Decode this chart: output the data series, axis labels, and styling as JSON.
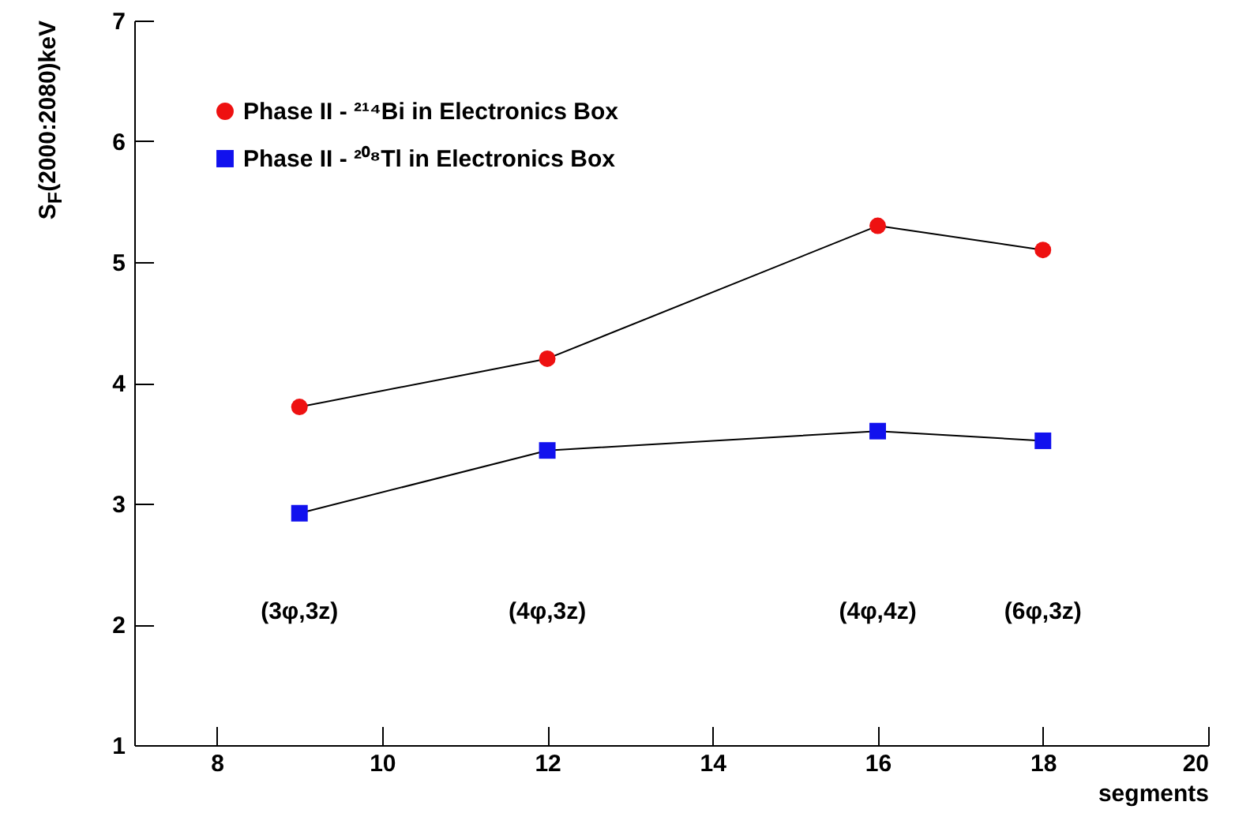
{
  "chart_data": {
    "type": "line",
    "xlabel": "segments",
    "ylabel": "S$_{F}$(2000:2080)keV",
    "x": [
      9,
      12,
      16,
      18
    ],
    "series": [
      {
        "name": "Phase II - ²¹⁴Bi in Electronics Box",
        "color": "#ee1111",
        "marker": "circle",
        "values": [
          3.8,
          4.2,
          5.3,
          5.1
        ]
      },
      {
        "name": "Phase II - ²⁰⁸Tl in Electronics Box",
        "color": "#1111ee",
        "marker": "square",
        "values": [
          2.92,
          3.44,
          3.6,
          3.52
        ]
      }
    ],
    "annotations": [
      "(3φ,3z)",
      "(4φ,3z)",
      "(4φ,4z)",
      "(6φ,3z)"
    ],
    "xlim": [
      7,
      20
    ],
    "xticks": [
      8,
      10,
      12,
      14,
      16,
      18,
      20
    ],
    "ylim": [
      1,
      7
    ],
    "yticks": [
      1,
      2,
      3,
      4,
      5,
      6,
      7
    ],
    "legend": "top left",
    "grid": false,
    "line_style": "solid"
  }
}
